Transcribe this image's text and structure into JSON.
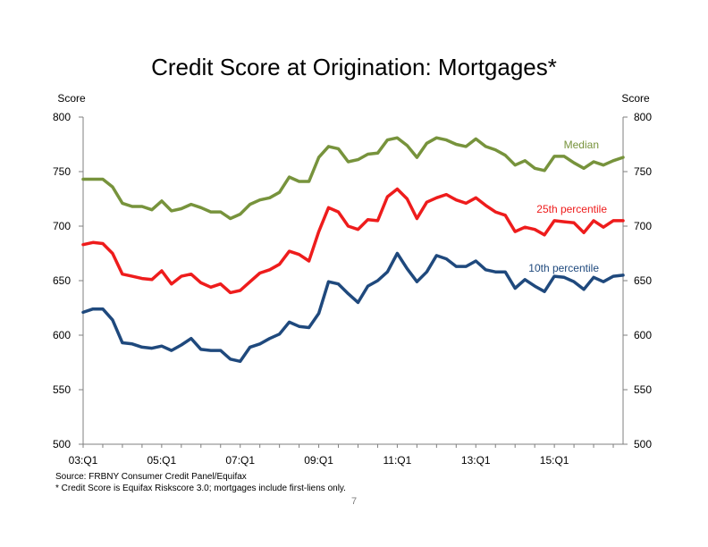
{
  "slide": {
    "page_number": "7",
    "source_note": "Source: FRBNY Consumer Credit Panel/Equifax",
    "footnote": "* Credit Score is Equifax Riskscore 3.0; mortgages include first-liens only."
  },
  "chart_data": {
    "type": "line",
    "title": "Credit Score at Origination: Mortgages*",
    "ylabel_left": "Score",
    "ylabel_right": "Score",
    "ylim": [
      500,
      800
    ],
    "y_ticks": [
      500,
      550,
      600,
      650,
      700,
      750,
      800
    ],
    "x_tick_labels": [
      "03:Q1",
      "05:Q1",
      "07:Q1",
      "09:Q1",
      "11:Q1",
      "13:Q1",
      "15:Q1"
    ],
    "x_tick_index": [
      0,
      8,
      16,
      24,
      32,
      40,
      48
    ],
    "grid": false,
    "series": [
      {
        "name": "Median",
        "color": "#77933C",
        "values": [
          743,
          743,
          743,
          736,
          721,
          718,
          718,
          715,
          723,
          714,
          716,
          720,
          717,
          713,
          713,
          707,
          711,
          720,
          724,
          726,
          731,
          745,
          741,
          741,
          763,
          773,
          771,
          759,
          761,
          766,
          767,
          779,
          781,
          774,
          763,
          776,
          781,
          779,
          775,
          773,
          780,
          773,
          770,
          765,
          756,
          760,
          753,
          751,
          764,
          764,
          758,
          753,
          759,
          756,
          760,
          763
        ]
      },
      {
        "name": "25th percentile",
        "color": "#EE1C1C",
        "values": [
          683,
          685,
          684,
          675,
          656,
          654,
          652,
          651,
          659,
          647,
          654,
          656,
          648,
          644,
          647,
          639,
          641,
          649,
          657,
          660,
          665,
          677,
          674,
          668,
          695,
          717,
          713,
          700,
          697,
          706,
          705,
          727,
          734,
          725,
          707,
          722,
          726,
          729,
          724,
          721,
          726,
          719,
          713,
          710,
          695,
          699,
          697,
          692,
          705,
          704,
          703,
          694,
          705,
          699,
          705,
          705
        ]
      },
      {
        "name": "10th percentile",
        "color": "#1F497D",
        "values": [
          621,
          624,
          624,
          614,
          593,
          592,
          589,
          588,
          590,
          586,
          591,
          597,
          587,
          586,
          586,
          578,
          576,
          589,
          592,
          597,
          601,
          612,
          608,
          607,
          620,
          649,
          647,
          638,
          630,
          645,
          650,
          658,
          675,
          661,
          649,
          658,
          673,
          670,
          663,
          663,
          668,
          660,
          658,
          658,
          643,
          651,
          645,
          640,
          654,
          653,
          649,
          642,
          653,
          649,
          654,
          655
        ]
      }
    ]
  }
}
